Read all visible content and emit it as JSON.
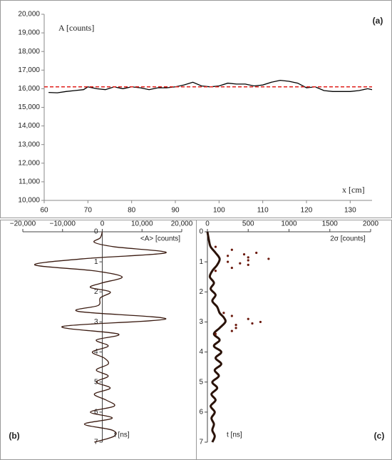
{
  "chart_data": [
    {
      "type": "line",
      "panel": "(a)",
      "x_label": "x [cm]",
      "y_label": "A [counts]",
      "xlim": [
        60,
        135
      ],
      "xticks": [
        60,
        70,
        80,
        90,
        100,
        110,
        120,
        130
      ],
      "ylim": [
        10000,
        20000
      ],
      "yticks": [
        {
          "value": 10000,
          "label": "10,000"
        },
        {
          "value": 11000,
          "label": "11,000"
        },
        {
          "value": 12000,
          "label": "12,000"
        },
        {
          "value": 13000,
          "label": "13,000"
        },
        {
          "value": 14000,
          "label": "14,000"
        },
        {
          "value": 15000,
          "label": "15,000"
        },
        {
          "value": 16000,
          "label": "16,000"
        },
        {
          "value": 17000,
          "label": "17,000"
        },
        {
          "value": 18000,
          "label": "18,000"
        },
        {
          "value": 19000,
          "label": "19,000"
        },
        {
          "value": 20000,
          "label": "20,000"
        }
      ],
      "series": [
        {
          "style": "thin",
          "color": "#000000",
          "x": [
            61,
            63,
            65,
            67,
            69,
            70,
            72,
            74,
            76,
            78,
            80,
            82,
            84,
            86,
            88,
            90,
            92,
            94,
            96,
            98,
            100,
            102,
            104,
            106,
            108,
            110,
            112,
            114,
            116,
            118,
            120,
            122,
            124,
            126,
            128,
            130,
            132,
            134,
            135
          ],
          "values": [
            15800,
            15780,
            15850,
            15900,
            15950,
            16100,
            16000,
            15950,
            16100,
            16000,
            16100,
            16050,
            15950,
            16050,
            16050,
            16100,
            16200,
            16350,
            16150,
            16100,
            16150,
            16300,
            16250,
            16250,
            16150,
            16200,
            16350,
            16450,
            16400,
            16300,
            16050,
            16100,
            15900,
            15850,
            15850,
            15850,
            15900,
            16000,
            15950
          ]
        },
        {
          "style": "dashed",
          "color": "#e0201c",
          "x": [
            60,
            135
          ],
          "values": [
            16100,
            16100
          ]
        }
      ]
    },
    {
      "type": "line",
      "orientation": "vertical",
      "panel": "(b)",
      "x_label": "<A> [counts]",
      "y_label": "t [ns]",
      "xlim": [
        -20000,
        20000
      ],
      "xticks": [
        {
          "value": -20000,
          "label": "−20,000"
        },
        {
          "value": -10000,
          "label": "−10,000"
        },
        0,
        {
          "value": 10000,
          "label": "10,000"
        },
        {
          "value": 20000,
          "label": "20,000"
        }
      ],
      "ylim": [
        0,
        7
      ],
      "yticks": [
        0,
        1,
        2,
        3,
        4,
        5,
        6,
        7
      ],
      "series": [
        {
          "style": "thin",
          "color": "#3a1a10",
          "y": [
            0,
            0.2,
            0.35,
            0.5,
            0.7,
            0.9,
            1.1,
            1.3,
            1.5,
            1.7,
            1.85,
            2.0,
            2.2,
            2.45,
            2.65,
            2.9,
            3.15,
            3.4,
            3.6,
            3.8,
            4.0,
            4.2,
            4.4,
            4.6,
            4.8,
            5.0,
            5.2,
            5.4,
            5.6,
            5.8,
            6.0,
            6.2,
            6.4,
            6.6,
            6.8,
            7.0
          ],
          "values": [
            0,
            -500,
            -2000,
            3000,
            16000,
            -5000,
            -17000,
            -2000,
            5000,
            0,
            -3000,
            2000,
            -500,
            -1000,
            -6000,
            16000,
            -10000,
            4000,
            -1500,
            1500,
            -2500,
            500,
            1500,
            -1500,
            1500,
            -1500,
            2000,
            -2000,
            1000,
            3000,
            -3000,
            2500,
            -4500,
            2500,
            3000,
            -2000
          ]
        }
      ]
    },
    {
      "type": "line",
      "orientation": "vertical",
      "panel": "(c)",
      "x_label": "2σ [counts]",
      "y_label": "t [ns]",
      "xlim": [
        0,
        2000
      ],
      "xticks": [
        0,
        500,
        1000,
        1500,
        2000
      ],
      "ylim": [
        0,
        7
      ],
      "yticks": [
        0,
        1,
        2,
        3,
        4,
        5,
        6,
        7
      ],
      "series": [
        {
          "style": "thick",
          "color": "#2a1208",
          "y": [
            0,
            0.3,
            0.5,
            0.7,
            0.9,
            1.1,
            1.3,
            1.5,
            1.7,
            1.9,
            2.1,
            2.3,
            2.5,
            2.7,
            2.85,
            3.0,
            3.2,
            3.4,
            3.6,
            3.8,
            4.0,
            4.2,
            4.4,
            4.6,
            4.8,
            5.0,
            5.2,
            5.4,
            5.6,
            5.8,
            6.0,
            6.2,
            6.4,
            6.6,
            6.8,
            7.0
          ],
          "values": [
            0,
            20,
            40,
            100,
            150,
            120,
            60,
            30,
            80,
            40,
            100,
            60,
            120,
            150,
            200,
            220,
            150,
            80,
            150,
            80,
            170,
            100,
            170,
            90,
            140,
            60,
            120,
            50,
            100,
            40,
            90,
            50,
            80,
            60,
            90,
            60
          ]
        },
        {
          "style": "dots",
          "color": "#6b1a0e",
          "y": [
            0.5,
            0.6,
            0.7,
            0.75,
            0.8,
            0.85,
            0.9,
            0.95,
            1.0,
            1.05,
            1.1,
            1.2,
            1.3,
            2.7,
            2.8,
            2.9,
            3.0,
            3.05,
            3.1,
            3.2,
            3.3,
            3.4
          ],
          "values": [
            100,
            300,
            600,
            450,
            250,
            500,
            750,
            500,
            250,
            400,
            500,
            300,
            100,
            200,
            300,
            500,
            650,
            550,
            350,
            350,
            300,
            100
          ]
        }
      ]
    }
  ]
}
